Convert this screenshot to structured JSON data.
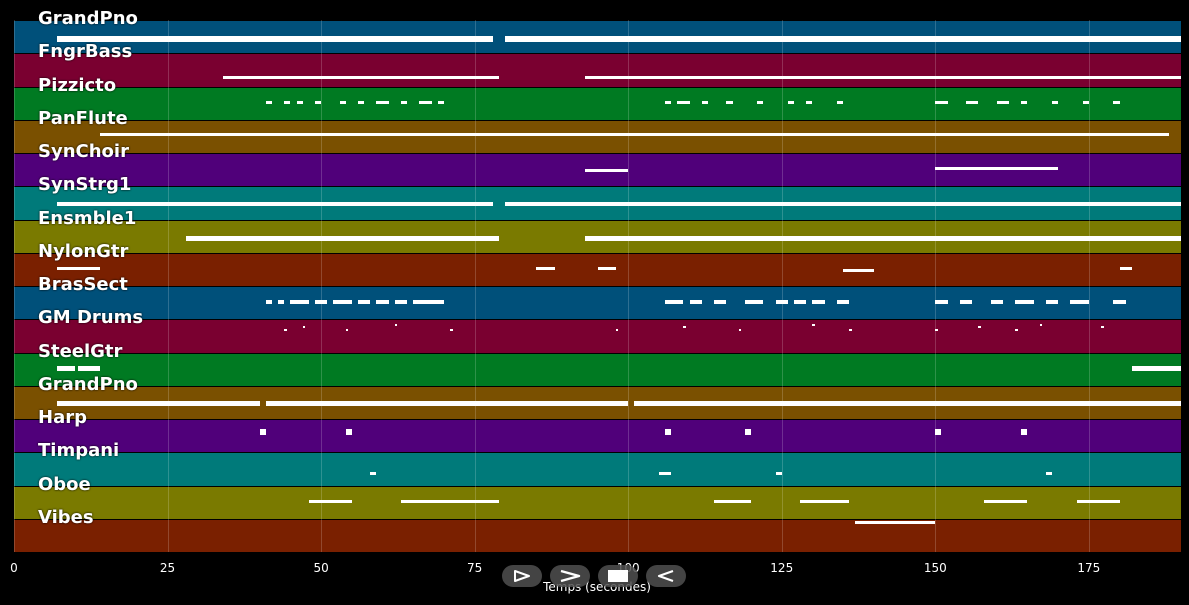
{
  "player": {
    "duration_seconds": 190,
    "axis_label": "Temps (secondes)",
    "ticks": [
      "0",
      "25",
      "50",
      "75",
      "100",
      "125",
      "150",
      "175"
    ],
    "tick_values": [
      0,
      25,
      50,
      75,
      100,
      125,
      150,
      175
    ],
    "controls": [
      {
        "name": "play-button",
        "icon": "play-outline-icon"
      },
      {
        "name": "forward-button",
        "icon": "chevron-right-icon"
      },
      {
        "name": "stop-button",
        "icon": "stop-icon"
      },
      {
        "name": "back-button",
        "icon": "play-reverse-icon"
      }
    ],
    "colors": {
      "blue": "#00507a",
      "crimson": "#7a0030",
      "green": "#007a22",
      "brown": "#7a5000",
      "purple": "#50007a",
      "teal": "#007a7a",
      "olive": "#7a7a00",
      "rust": "#7a2000"
    }
  },
  "tracks": [
    {
      "name": "GrandPno",
      "color": "#00507a",
      "notes": [
        [
          7,
          78,
          0.55,
          2
        ],
        [
          80,
          190,
          0.55,
          2
        ]
      ]
    },
    {
      "name": "FngrBass",
      "color": "#7a0030",
      "notes": [
        [
          34,
          79,
          0.7,
          1.2
        ],
        [
          93,
          190,
          0.7,
          1.2
        ]
      ]
    },
    {
      "name": "Pizzicto",
      "color": "#007a22",
      "notes": [
        [
          41,
          42,
          0.45,
          1.2
        ],
        [
          44,
          45,
          0.45,
          1.2
        ],
        [
          46,
          47,
          0.45,
          1.2
        ],
        [
          49,
          50,
          0.45,
          1.2
        ],
        [
          53,
          54,
          0.45,
          1.2
        ],
        [
          56,
          57,
          0.45,
          1.2
        ],
        [
          59,
          61,
          0.45,
          1.2
        ],
        [
          63,
          64,
          0.45,
          1.2
        ],
        [
          66,
          68,
          0.45,
          1.2
        ],
        [
          69,
          70,
          0.45,
          1.2
        ],
        [
          106,
          107,
          0.45,
          1.2
        ],
        [
          108,
          110,
          0.45,
          1.2
        ],
        [
          112,
          113,
          0.45,
          1.2
        ],
        [
          116,
          117,
          0.45,
          1.2
        ],
        [
          121,
          122,
          0.45,
          1.2
        ],
        [
          126,
          127,
          0.45,
          1.2
        ],
        [
          129,
          130,
          0.45,
          1.2
        ],
        [
          134,
          135,
          0.45,
          1.2
        ],
        [
          150,
          152,
          0.45,
          1.2
        ],
        [
          155,
          157,
          0.45,
          1.2
        ],
        [
          160,
          162,
          0.45,
          1.2
        ],
        [
          164,
          165,
          0.45,
          1.2
        ],
        [
          169,
          170,
          0.45,
          1.2
        ],
        [
          174,
          175,
          0.45,
          1.2
        ],
        [
          179,
          180,
          0.45,
          1.2
        ]
      ]
    },
    {
      "name": "PanFlute",
      "color": "#7a5000",
      "notes": [
        [
          14,
          79,
          0.4,
          1
        ],
        [
          79,
          188,
          0.4,
          1
        ]
      ]
    },
    {
      "name": "SynChoir",
      "color": "#50007a",
      "notes": [
        [
          93,
          100,
          0.5,
          1.2
        ],
        [
          150,
          170,
          0.45,
          1
        ]
      ]
    },
    {
      "name": "SynStrg1",
      "color": "#007a7a",
      "notes": [
        [
          7,
          78,
          0.5,
          1.5
        ],
        [
          80,
          190,
          0.5,
          1.5
        ]
      ]
    },
    {
      "name": "Ensmble1",
      "color": "#7a7a00",
      "notes": [
        [
          28,
          79,
          0.55,
          1.6
        ],
        [
          93,
          190,
          0.55,
          1.6
        ]
      ]
    },
    {
      "name": "NylonGtr",
      "color": "#7a2000",
      "notes": [
        [
          7,
          14,
          0.45,
          1
        ],
        [
          85,
          88,
          0.45,
          1
        ],
        [
          95,
          98,
          0.45,
          1
        ],
        [
          135,
          140,
          0.5,
          1
        ],
        [
          180,
          182,
          0.45,
          1
        ]
      ]
    },
    {
      "name": "BrasSect",
      "color": "#00507a",
      "notes": [
        [
          41,
          42,
          0.45,
          1.2
        ],
        [
          43,
          44,
          0.45,
          1.2
        ],
        [
          45,
          48,
          0.45,
          1.2
        ],
        [
          49,
          51,
          0.45,
          1.2
        ],
        [
          52,
          55,
          0.45,
          1.2
        ],
        [
          56,
          58,
          0.45,
          1.2
        ],
        [
          59,
          61,
          0.45,
          1.2
        ],
        [
          62,
          64,
          0.45,
          1.2
        ],
        [
          65,
          66,
          0.45,
          1.2
        ],
        [
          66,
          69,
          0.45,
          1.2
        ],
        [
          69,
          70,
          0.45,
          1.2
        ],
        [
          106,
          109,
          0.45,
          1.2
        ],
        [
          110,
          112,
          0.45,
          1.2
        ],
        [
          114,
          116,
          0.45,
          1.2
        ],
        [
          119,
          122,
          0.45,
          1.2
        ],
        [
          124,
          126,
          0.45,
          1.2
        ],
        [
          127,
          129,
          0.45,
          1.2
        ],
        [
          130,
          132,
          0.45,
          1.2
        ],
        [
          134,
          136,
          0.45,
          1.2
        ],
        [
          150,
          152,
          0.45,
          1.2
        ],
        [
          154,
          156,
          0.45,
          1.2
        ],
        [
          159,
          161,
          0.45,
          1.2
        ],
        [
          163,
          166,
          0.45,
          1.2
        ],
        [
          168,
          170,
          0.45,
          1.2
        ],
        [
          172,
          175,
          0.45,
          1.2
        ],
        [
          179,
          181,
          0.45,
          1.2
        ]
      ]
    },
    {
      "name": "GM Drums",
      "color": "#7a0030",
      "notes": [
        [
          44,
          44.4,
          0.3,
          0.8
        ],
        [
          47,
          47.4,
          0.2,
          0.8
        ],
        [
          54,
          54.4,
          0.3,
          0.8
        ],
        [
          62,
          62.4,
          0.15,
          0.8
        ],
        [
          71,
          71.4,
          0.3,
          0.8
        ],
        [
          98,
          98.4,
          0.3,
          0.8
        ],
        [
          109,
          109.4,
          0.2,
          0.8
        ],
        [
          118,
          118.4,
          0.3,
          0.8
        ],
        [
          130,
          130.4,
          0.15,
          0.8
        ],
        [
          136,
          136.4,
          0.3,
          0.8
        ],
        [
          150,
          150.4,
          0.3,
          0.8
        ],
        [
          157,
          157.4,
          0.2,
          0.8
        ],
        [
          163,
          163.4,
          0.3,
          0.8
        ],
        [
          167,
          167.4,
          0.15,
          0.8
        ],
        [
          177,
          177.4,
          0.2,
          0.8
        ]
      ]
    },
    {
      "name": "SteelGtr",
      "color": "#007a22",
      "notes": [
        [
          7,
          10,
          0.45,
          1.5
        ],
        [
          10.5,
          14,
          0.45,
          1.5
        ],
        [
          182,
          190,
          0.45,
          1.8
        ]
      ]
    },
    {
      "name": "GrandPno",
      "color": "#7a5000",
      "notes": [
        [
          7,
          40,
          0.5,
          1.5
        ],
        [
          41,
          100,
          0.5,
          1.5
        ],
        [
          101,
          190,
          0.5,
          1.5
        ]
      ]
    },
    {
      "name": "Harp",
      "color": "#50007a",
      "notes": [
        [
          40,
          41,
          0.35,
          2
        ],
        [
          54,
          55,
          0.35,
          2
        ],
        [
          106,
          107,
          0.35,
          2
        ],
        [
          119,
          120,
          0.35,
          2
        ],
        [
          150,
          151,
          0.35,
          2
        ],
        [
          164,
          165,
          0.35,
          2
        ]
      ]
    },
    {
      "name": "Timpani",
      "color": "#007a7a",
      "notes": [
        [
          58,
          59,
          0.6,
          1
        ],
        [
          105,
          107,
          0.6,
          1
        ],
        [
          124,
          125,
          0.6,
          1
        ],
        [
          168,
          169,
          0.6,
          1
        ]
      ]
    },
    {
      "name": "Oboe",
      "color": "#7a7a00",
      "notes": [
        [
          48,
          55,
          0.45,
          1
        ],
        [
          63,
          79,
          0.45,
          1
        ],
        [
          114,
          120,
          0.45,
          1
        ],
        [
          128,
          136,
          0.45,
          1
        ],
        [
          158,
          165,
          0.45,
          1
        ],
        [
          173,
          180,
          0.45,
          1
        ]
      ]
    },
    {
      "name": "Vibes",
      "color": "#7a2000",
      "notes": [
        [
          137,
          150,
          0.08,
          1
        ]
      ]
    }
  ]
}
